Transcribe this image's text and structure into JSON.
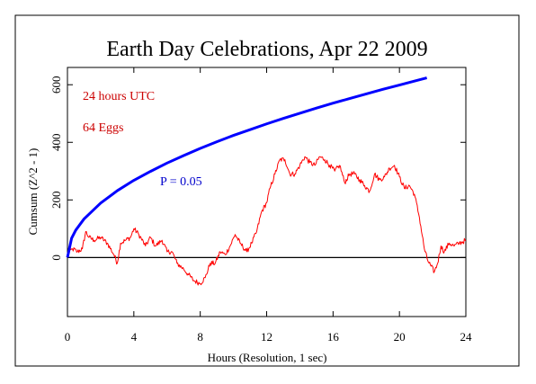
{
  "chart_data": {
    "type": "line",
    "title": "Earth Day Celebrations, Apr 22 2009",
    "xlabel": "Hours (Resolution, 1 sec)",
    "ylabel": "Cumsum (Z^2 - 1)",
    "xlim": [
      0,
      24
    ],
    "ylim": [
      -205,
      660
    ],
    "x_ticks": [
      0,
      4,
      8,
      12,
      16,
      20,
      24
    ],
    "x_tick_labels": [
      "0",
      "4",
      "8",
      "12",
      "16",
      "20",
      "24"
    ],
    "y_ticks": [
      0,
      200,
      400,
      600
    ],
    "y_tick_labels": [
      "0",
      "200",
      "400",
      "600"
    ],
    "grid": false,
    "annotations": {
      "duration": "24 hours UTC",
      "eggs": "64 Eggs",
      "p_label": "P = 0.05"
    },
    "series": [
      {
        "name": "",
        "color": "#ff0000",
        "x": [
          0,
          0.3,
          0.6,
          0.9,
          1.1,
          1.3,
          1.6,
          2.0,
          2.4,
          2.8,
          3.0,
          3.2,
          3.5,
          3.8,
          4.0,
          4.3,
          4.7,
          5.0,
          5.3,
          5.7,
          6.0,
          6.3,
          6.6,
          7.0,
          7.3,
          7.6,
          8.0,
          8.3,
          8.6,
          8.9,
          9.2,
          9.5,
          9.8,
          10.1,
          10.4,
          10.8,
          11.1,
          11.4,
          11.7,
          12.0,
          12.2,
          12.5,
          12.8,
          13.1,
          13.4,
          13.7,
          14.0,
          14.3,
          14.6,
          14.9,
          15.2,
          15.5,
          15.8,
          16.1,
          16.4,
          16.7,
          17.0,
          17.3,
          17.6,
          17.9,
          18.2,
          18.5,
          18.8,
          19.1,
          19.4,
          19.7,
          20.0,
          20.3,
          20.6,
          20.9,
          21.2,
          21.5,
          21.7,
          21.9,
          22.1,
          22.3,
          22.5,
          22.7,
          23.0,
          23.3,
          23.6,
          24.0
        ],
        "y": [
          10,
          30,
          20,
          30,
          90,
          70,
          60,
          70,
          50,
          10,
          -20,
          50,
          60,
          70,
          100,
          80,
          40,
          70,
          40,
          60,
          20,
          20,
          -20,
          -40,
          -60,
          -80,
          -90,
          -70,
          -20,
          -20,
          20,
          10,
          40,
          80,
          50,
          20,
          50,
          90,
          160,
          190,
          240,
          290,
          340,
          340,
          290,
          290,
          320,
          350,
          330,
          320,
          350,
          340,
          320,
          300,
          320,
          260,
          290,
          290,
          270,
          250,
          230,
          290,
          270,
          280,
          310,
          320,
          280,
          240,
          250,
          220,
          140,
          30,
          -10,
          -30,
          -50,
          -20,
          40,
          20,
          50,
          40,
          50,
          60
        ],
        "jitter": 9
      },
      {
        "name": "",
        "color": "#0000ff",
        "p": 0.05,
        "x": [
          0,
          0.25,
          0.5,
          1,
          2,
          3,
          4,
          5,
          6,
          7,
          8,
          9,
          10,
          11,
          12,
          13,
          14,
          15,
          16,
          17,
          18,
          19,
          20,
          21,
          21.65
        ],
        "y": [
          0,
          67,
          95,
          134,
          189,
          232,
          268,
          299,
          328,
          354,
          379,
          402,
          424,
          444,
          464,
          483,
          501,
          519,
          536,
          552,
          568,
          584,
          599,
          614,
          624
        ]
      }
    ],
    "baseline": 0
  }
}
